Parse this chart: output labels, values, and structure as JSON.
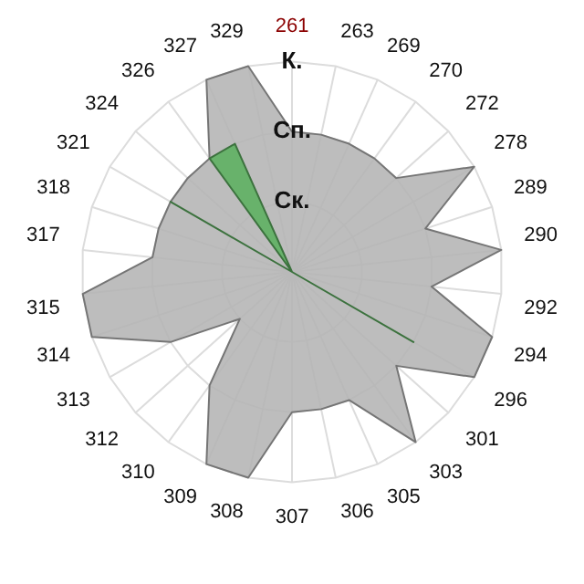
{
  "chart_data": {
    "type": "radar",
    "categories": [
      "261",
      "263",
      "269",
      "270",
      "272",
      "278",
      "289",
      "290",
      "292",
      "294",
      "296",
      "301",
      "303",
      "305",
      "306",
      "307",
      "308",
      "309",
      "310",
      "312",
      "313",
      "314",
      "315",
      "317",
      "318",
      "321",
      "324",
      "326",
      "327",
      "329"
    ],
    "series": [
      {
        "color": "#b4b4b4",
        "values": [
          2,
          2,
          2,
          2,
          2,
          3,
          2,
          3,
          2,
          3,
          3,
          2,
          3,
          2,
          2,
          2,
          3,
          3,
          2,
          1,
          2,
          3,
          3,
          2,
          2,
          2,
          2,
          2,
          3,
          3
        ]
      },
      {
        "color": "#5cb060",
        "values": [
          0,
          0,
          0,
          0,
          0,
          0,
          0,
          0,
          0,
          0,
          2,
          0,
          0,
          0,
          0,
          0,
          0,
          0,
          0,
          0,
          0,
          0,
          0,
          0,
          0,
          2,
          0,
          2,
          2,
          0
        ]
      }
    ],
    "ylim": [
      0,
      3
    ],
    "yticks": [
      {
        "value": 1,
        "label": "Ск."
      },
      {
        "value": 2,
        "label": "Сп."
      },
      {
        "value": 3,
        "label": "К."
      }
    ],
    "grid": true,
    "legend": false
  }
}
